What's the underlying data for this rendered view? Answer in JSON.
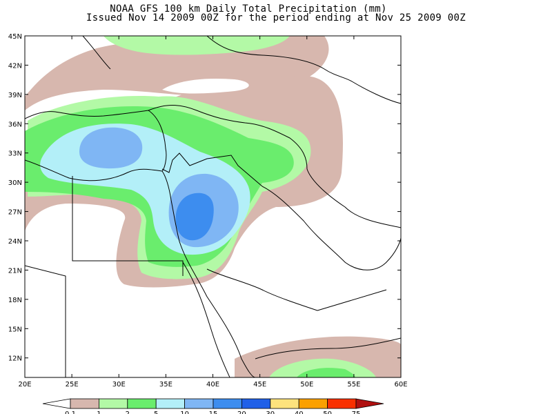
{
  "title": {
    "line1": "NOAA GFS 100 km Daily Total Precipitation (mm)",
    "line2": "Issued Nov 14 2009 00Z for the period ending at Nov 25 2009 00Z"
  },
  "map": {
    "lon_range": [
      20,
      60
    ],
    "lat_range": [
      10,
      45
    ],
    "lon_ticks": [
      "20E",
      "25E",
      "30E",
      "35E",
      "40E",
      "45E",
      "50E",
      "55E",
      "60E"
    ],
    "lat_ticks": [
      "45N",
      "42N",
      "39N",
      "36N",
      "33N",
      "30N",
      "27N",
      "24N",
      "21N",
      "18N",
      "15N",
      "12N"
    ]
  },
  "legend": {
    "labels": [
      "0.1",
      "1",
      "2",
      "5",
      "10",
      "15",
      "20",
      "30",
      "40",
      "50",
      "75"
    ],
    "colors": [
      "#ffffff",
      "#d7b7ae",
      "#b3f9a6",
      "#6aed6d",
      "#b3eff8",
      "#7fb6f4",
      "#3d8def",
      "#2060e8",
      "#fde27d",
      "#fba000",
      "#f93000",
      "#b01010"
    ]
  }
}
